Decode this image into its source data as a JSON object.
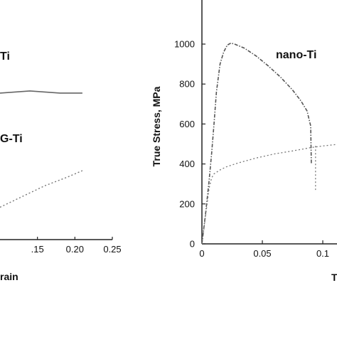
{
  "chart_data": [
    {
      "type": "line",
      "panel": "left (cropped)",
      "xlabel": "…train",
      "ylabel": "",
      "xlim": [
        0.1,
        0.25
      ],
      "x_ticks": [
        "0.15",
        "0.20",
        "0.25"
      ],
      "grid": false,
      "series": [
        {
          "name": "…Ti",
          "style": "solid",
          "color": "#666666",
          "x": [
            0.1,
            0.14,
            0.16,
            0.18,
            0.21
          ],
          "y": [
            0.7,
            0.71,
            0.705,
            0.7,
            0.7
          ]
        },
        {
          "name": "…G-Ti",
          "style": "dotted",
          "color": "#777777",
          "x": [
            0.1,
            0.13,
            0.16,
            0.19,
            0.21
          ],
          "y": [
            0.17,
            0.22,
            0.27,
            0.31,
            0.34
          ]
        }
      ]
    },
    {
      "type": "line",
      "panel": "right",
      "xlabel": "T…",
      "ylabel": "True Stress, MPa",
      "xlim": [
        0,
        0.12
      ],
      "ylim": [
        0,
        1150
      ],
      "x_ticks": [
        "0",
        "0.05",
        "0.1"
      ],
      "y_ticks": [
        "0",
        "200",
        "400",
        "600",
        "800",
        "1000"
      ],
      "grid": false,
      "series": [
        {
          "name": "nano-Ti",
          "style": "dash-dot",
          "color": "#555555",
          "x": [
            0,
            0.003,
            0.006,
            0.008,
            0.01,
            0.012,
            0.015,
            0.018,
            0.021,
            0.024,
            0.027,
            0.035,
            0.045,
            0.055,
            0.065,
            0.075,
            0.082,
            0.087,
            0.09,
            0.0905
          ],
          "y": [
            0,
            150,
            320,
            450,
            600,
            760,
            900,
            960,
            995,
            1005,
            1000,
            980,
            940,
            890,
            835,
            770,
            715,
            665,
            590,
            400
          ]
        },
        {
          "name": "",
          "style": "dotted",
          "color": "#777777",
          "x": [
            0,
            0.003,
            0.006,
            0.008,
            0.01,
            0.015,
            0.02,
            0.03,
            0.045,
            0.06,
            0.075,
            0.09,
            0.1,
            0.115
          ],
          "y": [
            0,
            140,
            280,
            330,
            350,
            370,
            385,
            405,
            430,
            450,
            465,
            482,
            490,
            500
          ]
        },
        {
          "name": "",
          "style": "dotted-drop",
          "color": "#777777",
          "x": [
            0.094,
            0.094
          ],
          "y": [
            490,
            270
          ]
        }
      ]
    }
  ],
  "labels": {
    "left_top_series": "Ti",
    "left_bottom_series": "G-Ti",
    "left_xlabel": "rain",
    "right_series": "nano-Ti",
    "right_ylabel": "True Stress, MPa",
    "right_xlabel": "T"
  }
}
